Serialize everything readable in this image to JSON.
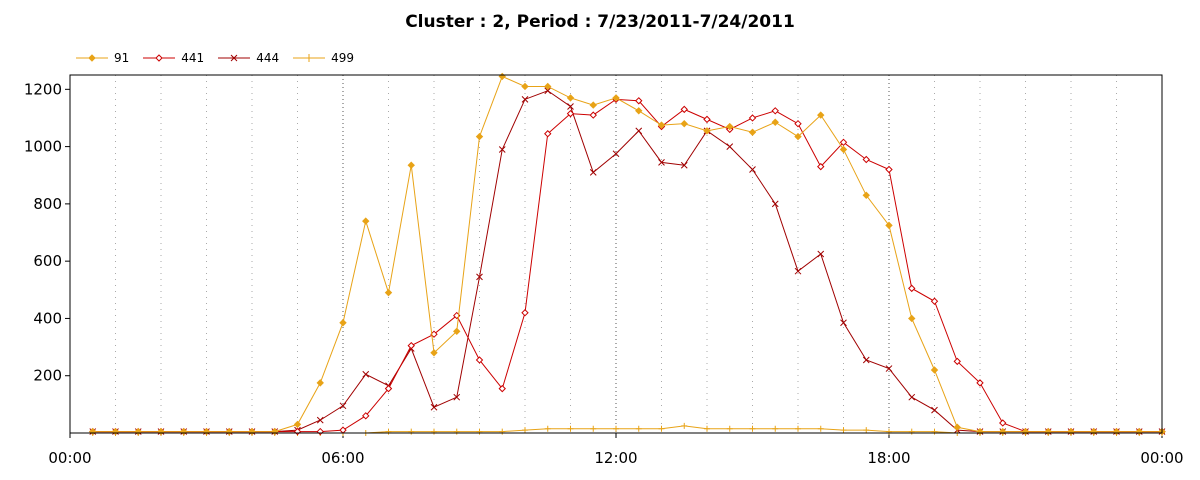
{
  "chart_data": {
    "type": "line",
    "title": "Cluster : 2, Period : 7/23/2011-7/24/2011",
    "xlabel": "",
    "ylabel": "",
    "x_ticks": [
      "00:00",
      "06:00",
      "12:00",
      "18:00",
      "00:00"
    ],
    "y_ticks": [
      "200",
      "400",
      "600",
      "800",
      "1000",
      "1200"
    ],
    "xlim_hours": [
      0,
      24
    ],
    "ylim": [
      0,
      1250
    ],
    "grid": true,
    "legend_position": "top-left",
    "x_hours": [
      0.5,
      1,
      1.5,
      2,
      2.5,
      3,
      3.5,
      4,
      4.5,
      5,
      5.5,
      6,
      6.5,
      7,
      7.5,
      8,
      8.5,
      9,
      9.5,
      10,
      10.5,
      11,
      11.5,
      12,
      12.5,
      13,
      13.5,
      14,
      14.5,
      15,
      15.5,
      16,
      16.5,
      17,
      17.5,
      18,
      18.5,
      19,
      19.5,
      20,
      20.5,
      21,
      21.5,
      22,
      22.5,
      23,
      23.5,
      24
    ],
    "series": [
      {
        "name": "91",
        "color": "#e8a317",
        "marker": "diamond",
        "values": [
          5,
          5,
          5,
          5,
          5,
          5,
          5,
          5,
          5,
          30,
          175,
          385,
          740,
          490,
          935,
          280,
          355,
          1035,
          1245,
          1210,
          1210,
          1170,
          1145,
          1170,
          1125,
          1075,
          1080,
          1055,
          1070,
          1050,
          1085,
          1035,
          1110,
          990,
          830,
          725,
          400,
          220,
          20,
          5,
          5,
          5,
          5,
          5,
          5,
          5,
          5,
          5
        ]
      },
      {
        "name": "441",
        "color": "#cc0000",
        "marker": "diamond",
        "values": [
          5,
          5,
          5,
          5,
          5,
          5,
          5,
          5,
          5,
          5,
          5,
          10,
          60,
          155,
          305,
          345,
          410,
          255,
          155,
          420,
          1045,
          1115,
          1110,
          1165,
          1160,
          1070,
          1130,
          1095,
          1060,
          1100,
          1125,
          1080,
          930,
          1015,
          955,
          920,
          505,
          460,
          250,
          175,
          35,
          5,
          5,
          5,
          5,
          5,
          5,
          5
        ]
      },
      {
        "name": "444",
        "color": "#a00000",
        "marker": "x",
        "values": [
          5,
          5,
          5,
          5,
          5,
          5,
          5,
          5,
          5,
          10,
          45,
          95,
          205,
          165,
          295,
          90,
          125,
          545,
          990,
          1165,
          1195,
          1140,
          910,
          975,
          1055,
          945,
          935,
          1055,
          1000,
          920,
          800,
          565,
          625,
          385,
          255,
          225,
          125,
          80,
          10,
          5,
          5,
          5,
          5,
          5,
          5,
          5,
          5,
          5
        ]
      },
      {
        "name": "499",
        "color": "#e8a317",
        "marker": "plus",
        "values": [
          0,
          0,
          0,
          0,
          0,
          0,
          0,
          0,
          0,
          0,
          0,
          0,
          0,
          5,
          5,
          5,
          5,
          5,
          5,
          10,
          15,
          15,
          15,
          15,
          15,
          15,
          25,
          15,
          15,
          15,
          15,
          15,
          15,
          10,
          10,
          5,
          5,
          5,
          0,
          0,
          0,
          0,
          0,
          0,
          0,
          0,
          0,
          0
        ]
      }
    ]
  }
}
